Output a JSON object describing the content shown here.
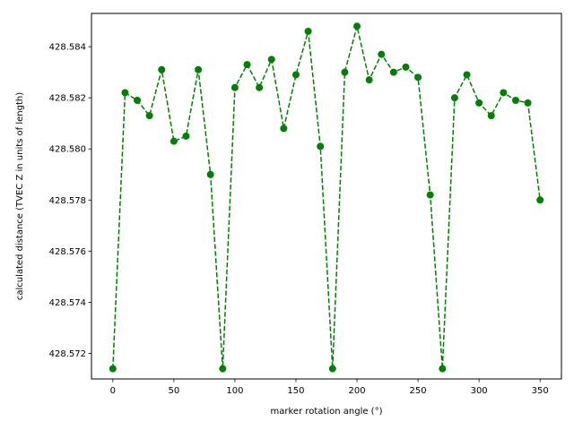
{
  "colors": {
    "series": "#008000",
    "axis": "#000000",
    "background": "#ffffff"
  },
  "chart_data": {
    "type": "line",
    "title": "",
    "xlabel": "marker rotation angle (°)",
    "ylabel": "calculated distance (TVEC Z in units of length)",
    "xlim": [
      -17.5,
      367.5
    ],
    "ylim": [
      428.571,
      428.5853
    ],
    "xticks": [
      0,
      50,
      100,
      150,
      200,
      250,
      300,
      350
    ],
    "xtick_labels": [
      "0",
      "50",
      "100",
      "150",
      "200",
      "250",
      "300",
      "350"
    ],
    "yticks": [
      428.572,
      428.574,
      428.576,
      428.578,
      428.58,
      428.582,
      428.584
    ],
    "ytick_labels": [
      "428.572",
      "428.574",
      "428.576",
      "428.578",
      "428.580",
      "428.582",
      "428.584"
    ],
    "grid": false,
    "legend": "none",
    "series": [
      {
        "line_style": "dashed",
        "marker": "circle",
        "color": "#008000",
        "x": [
          0,
          10,
          20,
          30,
          40,
          50,
          60,
          70,
          80,
          90,
          100,
          110,
          120,
          130,
          140,
          150,
          160,
          170,
          180,
          190,
          200,
          210,
          220,
          230,
          240,
          250,
          260,
          270,
          280,
          290,
          300,
          310,
          320,
          330,
          340,
          350
        ],
        "y": [
          428.5714,
          428.5822,
          428.5819,
          428.5813,
          428.5831,
          428.5803,
          428.5805,
          428.5831,
          428.579,
          428.5714,
          428.5824,
          428.5833,
          428.5824,
          428.5835,
          428.5808,
          428.5829,
          428.5846,
          428.5801,
          428.5714,
          428.583,
          428.5848,
          428.5827,
          428.5837,
          428.583,
          428.5832,
          428.5828,
          428.5782,
          428.5714,
          428.582,
          428.5829,
          428.5818,
          428.5813,
          428.5822,
          428.5819,
          428.5818,
          428.578
        ]
      }
    ]
  }
}
